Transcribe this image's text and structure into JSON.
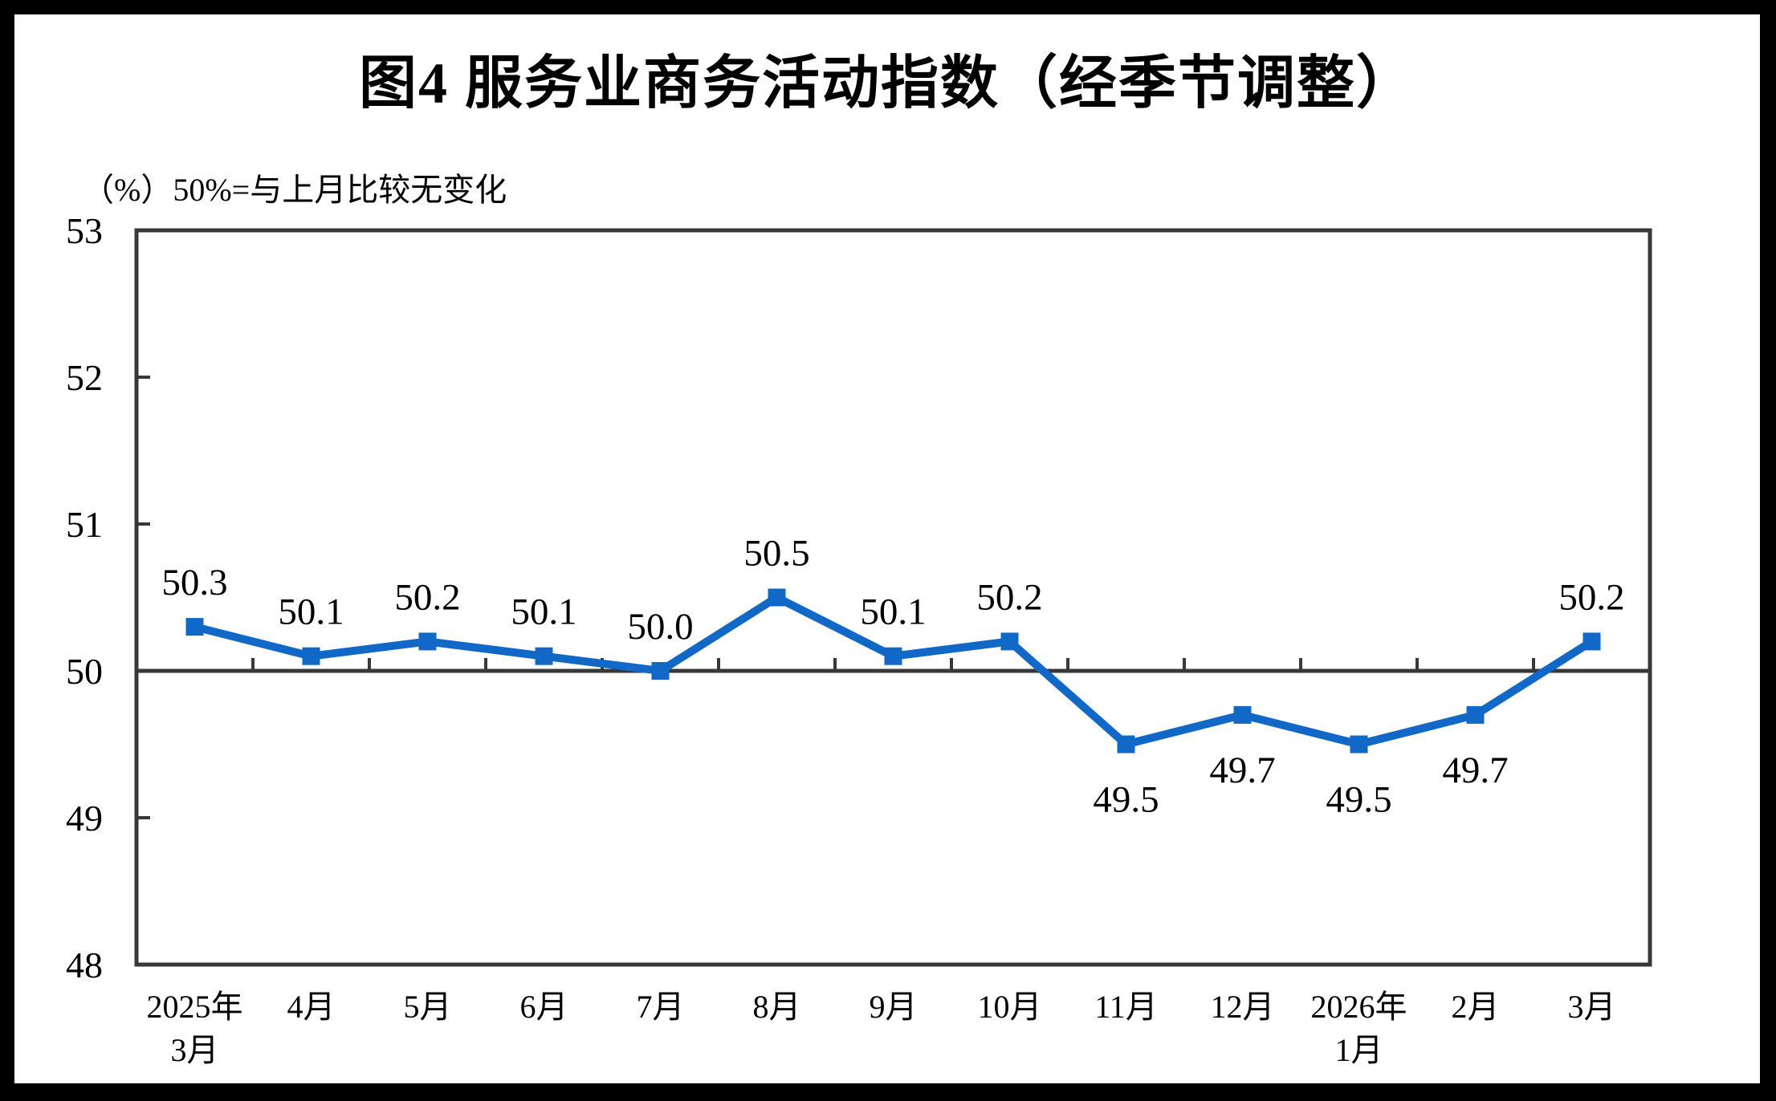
{
  "page": {
    "title": "图4  服务业商务活动指数（经季节调整）",
    "subtitle": "（%）50%=与上月比较无变化"
  },
  "chart_data": {
    "type": "line",
    "title": "图4  服务业商务活动指数（经季节调整）",
    "unit_note": "（%）50%=与上月比较无变化",
    "categories": [
      [
        "2025年",
        "3月"
      ],
      [
        "4月"
      ],
      [
        "5月"
      ],
      [
        "6月"
      ],
      [
        "7月"
      ],
      [
        "8月"
      ],
      [
        "9月"
      ],
      [
        "10月"
      ],
      [
        "11月"
      ],
      [
        "12月"
      ],
      [
        "2026年",
        "1月"
      ],
      [
        "2月"
      ],
      [
        "3月"
      ]
    ],
    "series": [
      {
        "name": "服务业商务活动指数（经季节调整）",
        "values": [
          50.3,
          50.1,
          50.2,
          50.1,
          50.0,
          50.5,
          50.1,
          50.2,
          49.5,
          49.7,
          49.5,
          49.7,
          50.2
        ]
      }
    ],
    "data_labels": [
      "50.3",
      "50.1",
      "50.2",
      "50.1",
      "50.0",
      "50.5",
      "50.1",
      "50.2",
      "49.5",
      "49.7",
      "49.5",
      "49.7",
      "50.2"
    ],
    "ylim": [
      48,
      53
    ],
    "yticks": [
      48,
      49,
      50,
      51,
      52,
      53
    ],
    "reference_line": 50,
    "grid": false,
    "legend_position": "none",
    "marker_shape": "square",
    "colors": {
      "line": "#1268C6",
      "marker": "#1268C6",
      "axis": "#383838",
      "text": "#000000",
      "background": "#ffffff",
      "outer_border": "#000000"
    }
  }
}
